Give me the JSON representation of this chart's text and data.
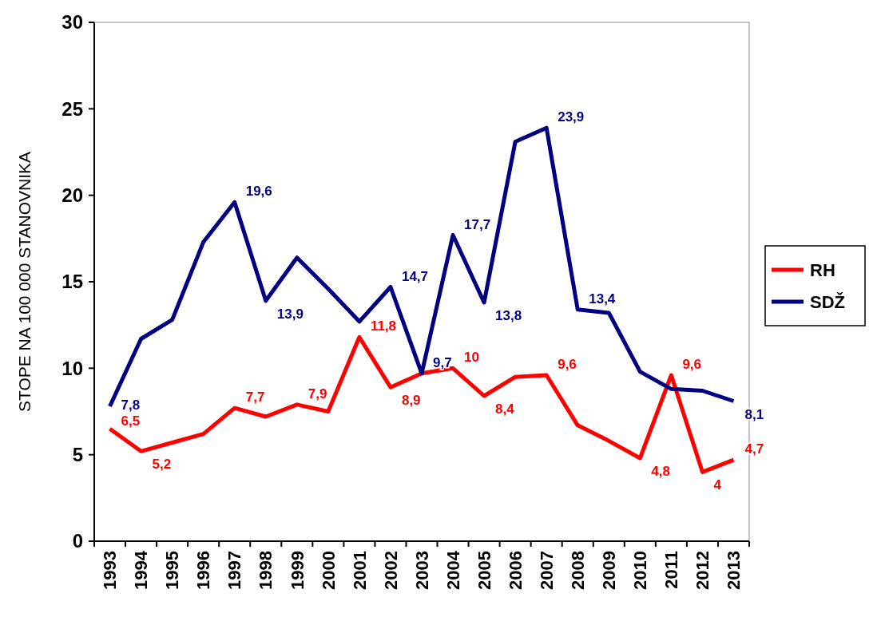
{
  "chart_data": {
    "type": "line",
    "ylabel": "STOPE NA 100 000 STANOVNIKA",
    "categories": [
      "1993",
      "1994",
      "1995",
      "1996",
      "1997",
      "1998",
      "1999",
      "2000",
      "2001",
      "2002",
      "2003",
      "2004",
      "2005",
      "2006",
      "2007",
      "2008",
      "2009",
      "2010",
      "2011",
      "2012",
      "2013"
    ],
    "series": [
      {
        "name": "RH",
        "color": "#ff0000",
        "values": [
          6.5,
          5.2,
          5.7,
          6.2,
          7.7,
          7.2,
          7.9,
          7.5,
          11.8,
          8.9,
          9.7,
          10,
          8.4,
          9.5,
          9.6,
          6.7,
          5.8,
          4.8,
          9.6,
          4,
          4.7
        ],
        "value_labels": [
          "6,5",
          "5,2",
          null,
          null,
          "7,7",
          null,
          "7,9",
          null,
          "11,8",
          "8,9",
          null,
          "10",
          "8,4",
          null,
          "9,6",
          null,
          null,
          "4,8",
          "9,6",
          "4",
          "4,7"
        ]
      },
      {
        "name": "SDŽ",
        "color": "#000080",
        "values": [
          7.8,
          11.7,
          12.8,
          17.3,
          19.6,
          13.9,
          16.4,
          14.6,
          12.7,
          14.7,
          9.7,
          17.7,
          13.8,
          23.1,
          23.9,
          13.4,
          13.2,
          9.8,
          8.8,
          8.7,
          8.1
        ],
        "value_labels": [
          "7,8",
          null,
          null,
          null,
          "19,6",
          "13,9",
          null,
          null,
          null,
          "14,7",
          "9,7",
          "17,7",
          "13,8",
          null,
          "23,9",
          "13,4",
          null,
          null,
          null,
          null,
          "8,1"
        ]
      }
    ],
    "ylim": [
      0,
      30
    ],
    "yticks": [
      0,
      5,
      10,
      15,
      20,
      25,
      30
    ],
    "grid": false,
    "legend": "right",
    "marker": "none",
    "line_style": "solid"
  }
}
